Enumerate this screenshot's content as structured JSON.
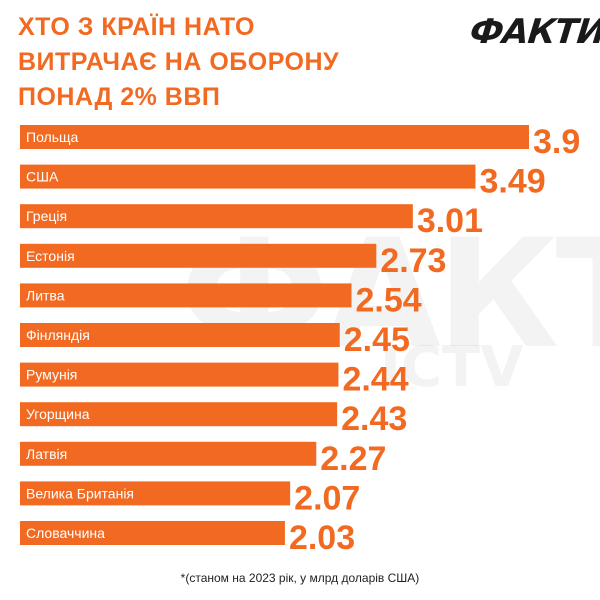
{
  "header": {
    "title_lines": [
      "ХТО З КРАЇН НАТО",
      "ВИТРАЧАЄ НА ОБОРОНУ",
      "ПОНАД 2% ВВП"
    ],
    "logo": "ФАКТИ",
    "watermark": "ФАКТИ",
    "watermark_sub": "ICTV"
  },
  "footnote": "*(станом на 2023 рік, у млрд доларів США)",
  "colors": {
    "bar": "#f26a21",
    "title": "#f26a21",
    "bar_label": "#ffffff"
  },
  "chart_data": {
    "type": "bar",
    "orientation": "horizontal",
    "categories": [
      "Польща",
      "США",
      "Греція",
      "Естонія",
      "Литва",
      "Фінляндія",
      "Румунія",
      "Угорщина",
      "Латвія",
      "Велика Британія",
      "Словаччина"
    ],
    "values": [
      3.9,
      3.49,
      3.01,
      2.73,
      2.54,
      2.45,
      2.44,
      2.43,
      2.27,
      2.07,
      2.03
    ],
    "value_labels": [
      "3.9",
      "3.49",
      "3.01",
      "2.73",
      "2.54",
      "2.45",
      "2.44",
      "2.43",
      "2.27",
      "2.07",
      "2.03"
    ],
    "title": "ХТО З КРАЇН НАТО ВИТРАЧАЄ НА ОБОРОНУ ПОНАД 2% ВВП",
    "grid": false,
    "legend": "none"
  }
}
